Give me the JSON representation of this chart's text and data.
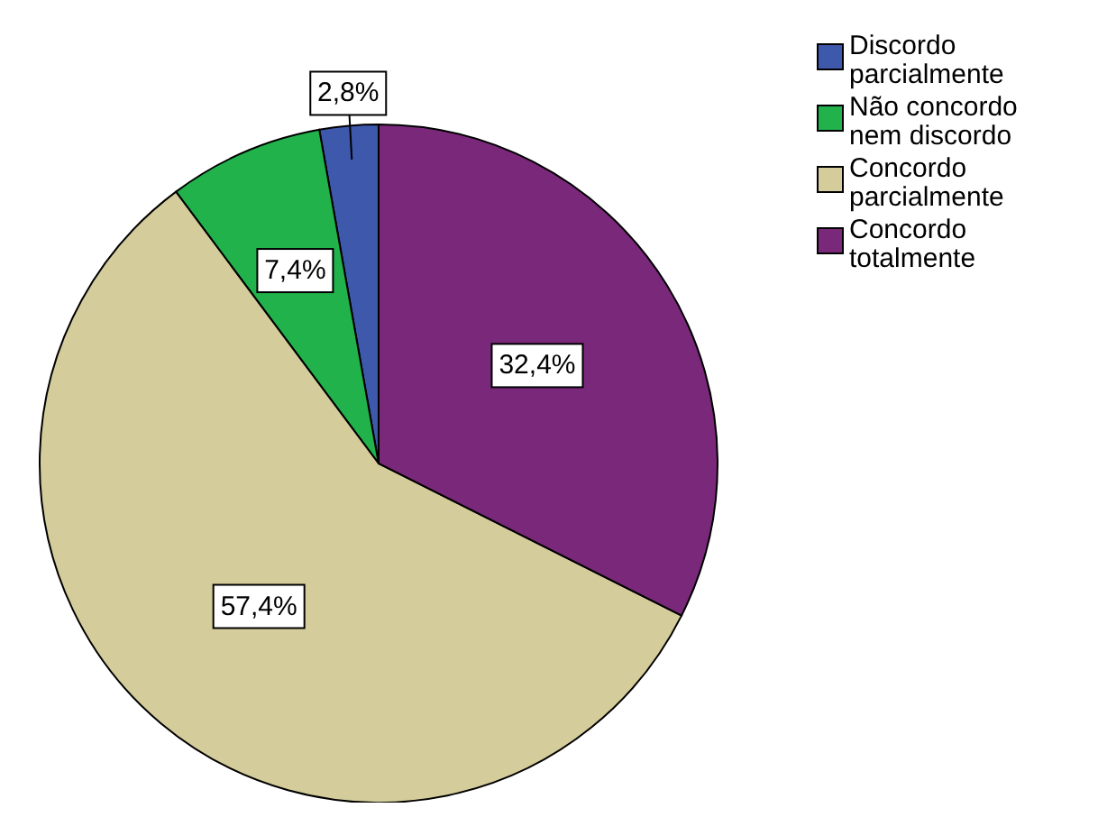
{
  "chart_data": {
    "type": "pie",
    "categories": [
      "Discordo parcialmente",
      "Não concordo nem discordo",
      "Concordo parcialmente",
      "Concordo totalmente"
    ],
    "values": [
      2.8,
      7.4,
      57.4,
      32.4
    ],
    "colors": [
      "#3e58ac",
      "#21b24b",
      "#d4cc9a",
      "#79287a"
    ],
    "value_labels": [
      "2,8%",
      "7,4%",
      "57,4%",
      "32,4%"
    ],
    "legend": "top right"
  }
}
